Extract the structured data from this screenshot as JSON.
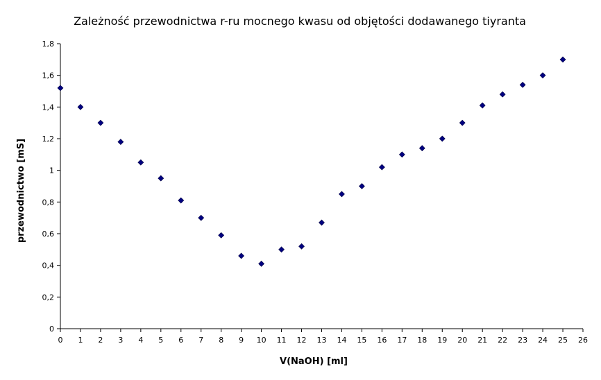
{
  "chart_data": {
    "type": "scatter",
    "title": "Zależność przewodnictwa r-ru mocnego kwasu od objętości dodawanego tiyranta",
    "xlabel": "V(NaOH)  [ml]",
    "ylabel": "przewodnictwo [mS]",
    "xlim": [
      0,
      26
    ],
    "ylim": [
      0,
      1.8
    ],
    "x_ticks": [
      "0",
      "1",
      "2",
      "3",
      "4",
      "5",
      "6",
      "7",
      "8",
      "9",
      "10",
      "11",
      "12",
      "13",
      "14",
      "15",
      "16",
      "17",
      "18",
      "19",
      "20",
      "21",
      "22",
      "23",
      "24",
      "25",
      "26"
    ],
    "y_ticks": [
      "0",
      "0,2",
      "0,4",
      "0,6",
      "0,8",
      "1",
      "1,2",
      "1,4",
      "1,6",
      "1,8"
    ],
    "grid": false,
    "legend": false,
    "marker_color": "#000080",
    "series": [
      {
        "x": [
          0,
          1,
          2,
          3,
          4,
          5,
          6,
          7,
          8,
          9,
          10,
          11,
          12,
          13,
          14,
          15,
          16,
          17,
          18,
          19,
          20,
          21,
          22,
          23,
          24,
          25
        ],
        "values": [
          1.52,
          1.4,
          1.3,
          1.18,
          1.05,
          0.95,
          0.81,
          0.7,
          0.59,
          0.46,
          0.41,
          0.5,
          0.52,
          0.67,
          0.85,
          0.9,
          1.02,
          1.1,
          1.14,
          1.2,
          1.3,
          1.41,
          1.48,
          1.54,
          1.6,
          1.7
        ]
      }
    ]
  }
}
